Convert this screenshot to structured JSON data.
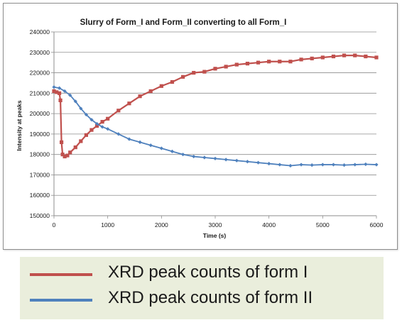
{
  "chart_data": {
    "type": "line",
    "title": "Slurry of Form_I and Form_II converting to all Form_I",
    "xlabel": "Time (s)",
    "ylabel": "Intensity at peaks",
    "xlim": [
      0,
      6000
    ],
    "ylim": [
      150000,
      240000
    ],
    "x_ticks": [
      "0",
      "1000",
      "2000",
      "3000",
      "4000",
      "5000",
      "6000"
    ],
    "y_ticks": [
      "150000",
      "160000",
      "170000",
      "180000",
      "190000",
      "200000",
      "210000",
      "220000",
      "230000",
      "240000"
    ],
    "grid": "horizontal",
    "legend_position": "bottom",
    "series": [
      {
        "name": "XRD peak counts of form I",
        "color": "#c0504d",
        "marker": "square",
        "x": [
          0,
          50,
          100,
          120,
          140,
          160,
          200,
          250,
          300,
          400,
          500,
          600,
          700,
          800,
          900,
          1000,
          1200,
          1400,
          1600,
          1800,
          2000,
          2200,
          2400,
          2600,
          2800,
          3000,
          3200,
          3400,
          3600,
          3800,
          4000,
          4200,
          4400,
          4600,
          4800,
          5000,
          5200,
          5400,
          5600,
          5800,
          6000
        ],
        "y": [
          211000,
          210500,
          210000,
          206500,
          186000,
          180000,
          179000,
          179500,
          181000,
          183500,
          186500,
          189500,
          192000,
          194000,
          196000,
          197500,
          201500,
          205000,
          208500,
          211000,
          213500,
          215500,
          218000,
          220000,
          220500,
          222000,
          223000,
          224000,
          224500,
          225000,
          225500,
          225500,
          225500,
          226500,
          227000,
          227500,
          228000,
          228500,
          228500,
          228000,
          227500
        ]
      },
      {
        "name": "XRD peak counts of form II",
        "color": "#4f81bd",
        "marker": "diamond",
        "x": [
          0,
          100,
          200,
          300,
          400,
          500,
          600,
          700,
          800,
          900,
          1000,
          1200,
          1400,
          1600,
          1800,
          2000,
          2200,
          2400,
          2600,
          2800,
          3000,
          3200,
          3400,
          3600,
          3800,
          4000,
          4200,
          4400,
          4600,
          4800,
          5000,
          5200,
          5400,
          5600,
          5800,
          6000
        ],
        "y": [
          213000,
          212500,
          211000,
          209000,
          206000,
          202500,
          199500,
          197000,
          195000,
          193500,
          192500,
          190000,
          187500,
          186000,
          184500,
          183000,
          181500,
          180000,
          179000,
          178500,
          178000,
          177500,
          177000,
          176500,
          176000,
          175500,
          175000,
          174500,
          175000,
          174800,
          175000,
          175000,
          174800,
          175000,
          175200,
          175000
        ]
      }
    ]
  }
}
